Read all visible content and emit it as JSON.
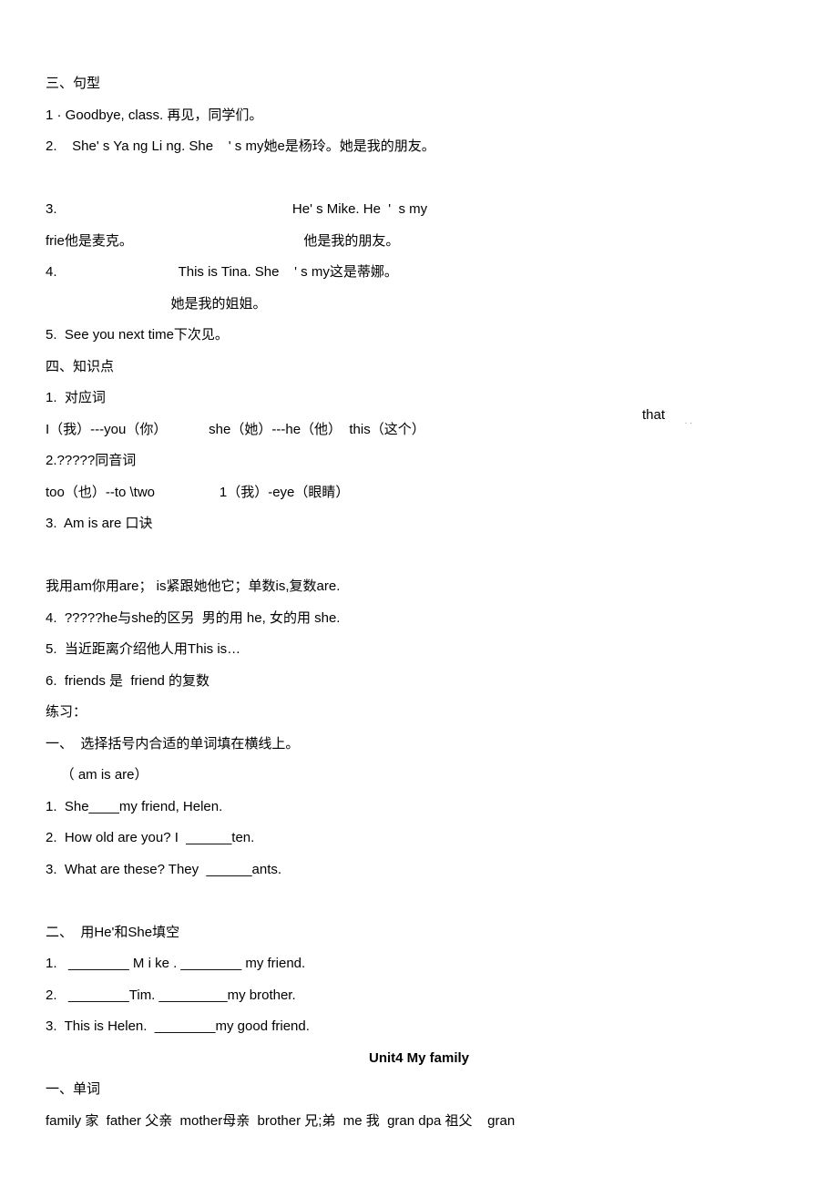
{
  "section3_header": "三、句型",
  "sentence1": "1 · Goodbye, class. 再见，同学们。",
  "sentence2": "2.    She' s Ya ng Li ng. She    ' s my她e是杨玲。她是我的朋友。",
  "sentence3a": "3.                                                              He' s Mike. He  '  s my",
  "sentence3b": "frie他是麦克。                                             他是我的朋友。",
  "sentence4a": "4.                                This is Tina. She    ' s my这是蒂娜。",
  "sentence4b": "                                 她是我的姐姐。",
  "sentence5": "5.  See you next time下次见。",
  "section4_header": "四、知识点",
  "point1_header": "1.  对应词",
  "point1_content": "I（我）---you（你）           she（她）---he（他）  this（这个）",
  "point1_that": "that",
  "point2_header": "2.?????同音词",
  "point2_content": "too（也）--to \\two                 1（我）-eye（眼睛）",
  "point3_header": "3.  Am is are 口诀",
  "point3_content": "我用am你用are； is紧跟她他它；单数is,复数are.",
  "point4": "4.  ?????he与she的区另  男的用 he, 女的用 she.",
  "point5": "5.  当近距离介绍他人用This is…",
  "point6": "6.  friends 是  friend 的复数",
  "practice_header": "练习：",
  "ex1_header": "一、  选择括号内合适的单词填在横线上。",
  "ex1_options": "    （ am is are）",
  "ex1_q1": "1.  She____my friend, Helen.",
  "ex1_q2": "2.  How old are you? I  ______ten.",
  "ex1_q3": "3.  What are these? They  ______ants.",
  "ex2_header": "二、  用He'和She填空",
  "ex2_q1": "1.   ________ M i ke . ________ my friend.",
  "ex2_q2": "2.   ________Tim. _________my brother.",
  "ex2_q3": "3.  This is Helen.  ________my good friend.",
  "unit4_title": "Unit4 My family",
  "unit4_section1": "一、单词",
  "unit4_words": "family 家  father 父亲  mother母亲  brother 兄;弟  me 我  gran dpa 祖父    gran"
}
